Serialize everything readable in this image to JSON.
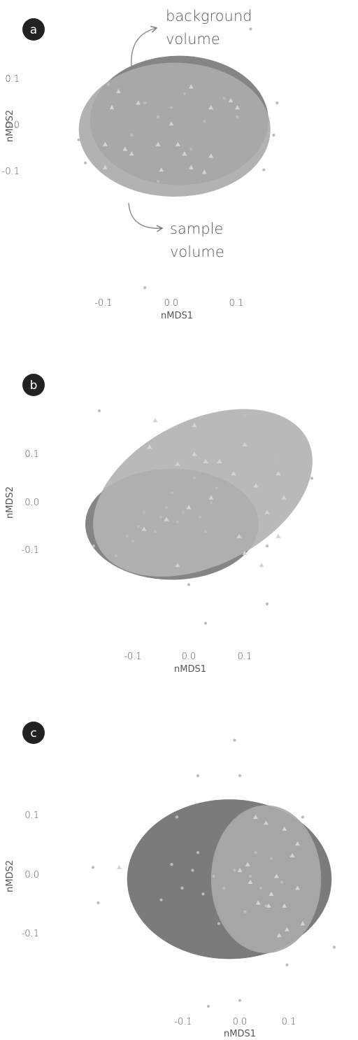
{
  "chart_data": [
    {
      "panel": "a",
      "type": "scatter",
      "xlabel": "nMDS1",
      "ylabel": "nMDS2",
      "xticks": [
        "-0.1",
        "0.0",
        "0.1"
      ],
      "yticks": [
        "0.1",
        "0.0",
        "-0.1"
      ],
      "xlim": [
        -0.19,
        0.25
      ],
      "ylim": [
        -0.35,
        0.2
      ],
      "annotations": [
        {
          "text": [
            "background",
            "volume"
          ],
          "points_to": "background"
        },
        {
          "text": [
            "sample",
            "volume"
          ],
          "points_to": "sample"
        }
      ],
      "ellipses": [
        {
          "name": "background",
          "cx": 0.012,
          "cy": 0.012,
          "rx": 0.135,
          "ry": 0.14,
          "angle": 0,
          "fill": "#7b7b7b"
        },
        {
          "name": "sample",
          "cx": 0.005,
          "cy": -0.008,
          "rx": 0.145,
          "ry": 0.145,
          "angle": 0,
          "fill": "#ababab"
        }
      ],
      "series": [
        {
          "marker": "circle",
          "points": [
            [
              0.12,
              0.21
            ],
            [
              -0.095,
              0.09
            ],
            [
              0.16,
              0.05
            ],
            [
              0.155,
              -0.02
            ],
            [
              0.14,
              -0.095
            ],
            [
              -0.13,
              -0.08
            ],
            [
              -0.14,
              -0.03
            ],
            [
              -0.04,
              -0.35
            ],
            [
              -0.04,
              0.05
            ],
            [
              0.0,
              0.04
            ],
            [
              0.02,
              0.07
            ],
            [
              -0.02,
              0.02
            ],
            [
              0.05,
              0.01
            ],
            [
              -0.06,
              -0.02
            ],
            [
              0.08,
              0.06
            ],
            [
              0.03,
              -0.05
            ],
            [
              -0.02,
              -0.12
            ],
            [
              0.1,
              0.02
            ]
          ]
        },
        {
          "marker": "triangle",
          "points": [
            [
              -0.08,
              0.075
            ],
            [
              -0.09,
              0.04
            ],
            [
              -0.05,
              0.05
            ],
            [
              0.03,
              0.085
            ],
            [
              0.09,
              0.055
            ],
            [
              0.0,
              0.005
            ],
            [
              0.06,
              0.04
            ],
            [
              0.1,
              0.04
            ],
            [
              -0.1,
              -0.04
            ],
            [
              -0.07,
              -0.05
            ],
            [
              -0.06,
              -0.06
            ],
            [
              -0.02,
              -0.04
            ],
            [
              0.01,
              -0.04
            ],
            [
              0.06,
              -0.065
            ],
            [
              0.03,
              -0.09
            ],
            [
              -0.015,
              -0.095
            ],
            [
              0.05,
              -0.1
            ],
            [
              -0.1,
              -0.09
            ],
            [
              0.02,
              -0.06
            ]
          ]
        }
      ]
    },
    {
      "panel": "b",
      "type": "scatter",
      "xlabel": "nMDS1",
      "ylabel": "nMDS2",
      "xticks": [
        "-0.1",
        "0.0",
        "0.1"
      ],
      "yticks": [
        "0.1",
        "0.0",
        "-0.1"
      ],
      "xlim": [
        -0.22,
        0.23
      ],
      "ylim": [
        -0.35,
        0.22
      ],
      "ellipses": [
        {
          "name": "background",
          "cx": -0.03,
          "cy": -0.045,
          "rx": 0.155,
          "ry": 0.115,
          "angle": 0,
          "fill": "#7b7b7b"
        },
        {
          "name": "sample",
          "cx": 0.025,
          "cy": 0.02,
          "rx": 0.21,
          "ry": 0.15,
          "angle": -27,
          "fill": "#b3b3b3"
        }
      ],
      "series": [
        {
          "marker": "circle",
          "points": [
            [
              -0.16,
              0.19
            ],
            [
              0.1,
              0.18
            ],
            [
              0.16,
              0.09
            ],
            [
              0.22,
              0.05
            ],
            [
              0.14,
              -0.09
            ],
            [
              0.0,
              -0.17
            ],
            [
              0.03,
              -0.25
            ],
            [
              0.14,
              -0.21
            ],
            [
              -0.17,
              -0.09
            ],
            [
              -0.13,
              -0.11
            ],
            [
              -0.1,
              -0.08
            ],
            [
              -0.08,
              -0.02
            ],
            [
              -0.05,
              -0.03
            ],
            [
              -0.04,
              -0.01
            ],
            [
              -0.01,
              -0.02
            ],
            [
              0.0,
              -0.01
            ],
            [
              0.02,
              -0.03
            ],
            [
              0.04,
              0.0
            ],
            [
              -0.06,
              -0.06
            ],
            [
              -0.03,
              0.02
            ],
            [
              0.05,
              0.03
            ],
            [
              -0.09,
              -0.05
            ],
            [
              -0.11,
              -0.07
            ],
            [
              -0.02,
              -0.04
            ],
            [
              0.01,
              0.05
            ],
            [
              0.03,
              -0.06
            ]
          ]
        },
        {
          "marker": "triangle",
          "points": [
            [
              -0.06,
              0.17
            ],
            [
              0.01,
              0.16
            ],
            [
              -0.07,
              0.115
            ],
            [
              0.01,
              0.1
            ],
            [
              0.03,
              0.085
            ],
            [
              0.1,
              0.12
            ],
            [
              -0.02,
              0.08
            ],
            [
              0.055,
              0.085
            ],
            [
              0.08,
              0.06
            ],
            [
              0.16,
              0.06
            ],
            [
              0.12,
              0.035
            ],
            [
              0.04,
              0.01
            ],
            [
              0.17,
              0.01
            ],
            [
              0.14,
              -0.02
            ],
            [
              -0.08,
              -0.055
            ],
            [
              -0.04,
              -0.035
            ],
            [
              0.0,
              -0.01
            ],
            [
              0.09,
              -0.07
            ],
            [
              0.16,
              -0.07
            ],
            [
              0.1,
              -0.105
            ],
            [
              -0.02,
              -0.13
            ],
            [
              0.13,
              -0.13
            ]
          ]
        }
      ]
    },
    {
      "panel": "c",
      "type": "scatter",
      "xlabel": "nMDS1",
      "ylabel": "nMDS2",
      "xticks": [
        "-0.1",
        "0.0",
        "0.1"
      ],
      "yticks": [
        "0.1",
        "0.0",
        "-0.1"
      ],
      "xlim": [
        -0.3,
        0.2
      ],
      "ylim": [
        -0.32,
        0.22
      ],
      "ellipses": [
        {
          "name": "background",
          "cx": -0.02,
          "cy": -0.005,
          "rx": 0.195,
          "ry": 0.135,
          "angle": 0,
          "fill": "#707070"
        },
        {
          "name": "sample",
          "cx": 0.05,
          "cy": -0.005,
          "rx": 0.105,
          "ry": 0.125,
          "angle": 0,
          "fill": "#a9a9a9"
        }
      ],
      "series": [
        {
          "marker": "circle",
          "points": [
            [
              -0.01,
              0.23
            ],
            [
              -0.08,
              0.17
            ],
            [
              0.0,
              0.17
            ],
            [
              -0.12,
              0.1
            ],
            [
              -0.28,
              0.015
            ],
            [
              -0.27,
              -0.045
            ],
            [
              0.12,
              0.1
            ],
            [
              0.18,
              -0.12
            ],
            [
              0.09,
              -0.15
            ],
            [
              -0.06,
              -0.22
            ],
            [
              0.0,
              -0.21
            ],
            [
              -0.11,
              -0.02
            ],
            [
              -0.09,
              0.01
            ],
            [
              -0.07,
              -0.03
            ],
            [
              -0.05,
              0.0
            ],
            [
              -0.03,
              -0.02
            ],
            [
              -0.01,
              0.01
            ],
            [
              0.02,
              0.0
            ],
            [
              0.04,
              -0.02
            ],
            [
              -0.13,
              0.02
            ],
            [
              -0.15,
              -0.04
            ],
            [
              0.06,
              0.03
            ],
            [
              0.08,
              -0.01
            ],
            [
              0.03,
              0.04
            ],
            [
              -0.08,
              0.04
            ],
            [
              0.01,
              -0.06
            ],
            [
              -0.04,
              -0.08
            ],
            [
              0.05,
              -0.05
            ]
          ]
        },
        {
          "marker": "triangle",
          "points": [
            [
              -0.23,
              0.015
            ],
            [
              0.03,
              0.1
            ],
            [
              0.05,
              0.09
            ],
            [
              0.085,
              0.08
            ],
            [
              0.11,
              0.055
            ],
            [
              0.1,
              0.035
            ],
            [
              0.015,
              0.02
            ],
            [
              0.07,
              0.0
            ],
            [
              0.02,
              -0.01
            ],
            [
              0.11,
              -0.02
            ],
            [
              0.035,
              -0.045
            ],
            [
              0.055,
              -0.05
            ],
            [
              0.085,
              -0.05
            ],
            [
              0.09,
              -0.09
            ],
            [
              0.075,
              -0.1
            ],
            [
              0.12,
              -0.08
            ],
            [
              0.06,
              -0.03
            ],
            [
              0.0,
              0.01
            ]
          ]
        }
      ]
    }
  ]
}
